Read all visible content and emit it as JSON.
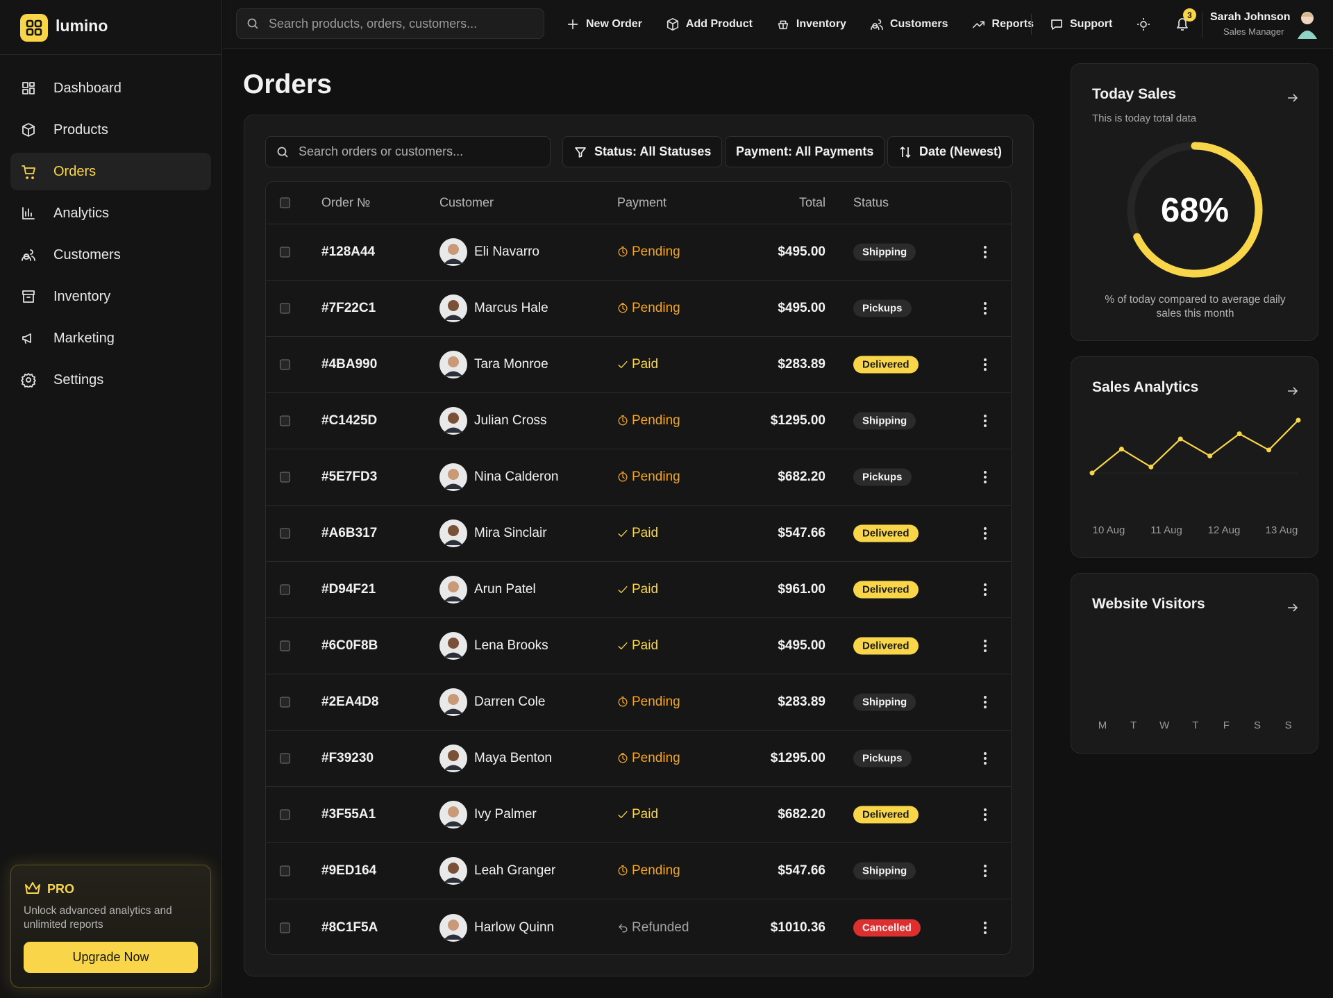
{
  "brand": "lumino",
  "search_placeholder": "Search products, orders, customers...",
  "top_actions": [
    "New Order",
    "Add Product",
    "Inventory",
    "Customers",
    "Reports"
  ],
  "support": "Support",
  "notifications": "3",
  "user": {
    "name": "Sarah Johnson",
    "role": "Sales Manager"
  },
  "nav": [
    "Dashboard",
    "Products",
    "Orders",
    "Analytics",
    "Customers",
    "Inventory",
    "Marketing",
    "Settings"
  ],
  "active_nav": 2,
  "pro": {
    "badge": "PRO",
    "text": "Unlock advanced analytics and unlimited reports",
    "button": "Upgrade Now"
  },
  "page_title": "Orders",
  "filters": {
    "search_placeholder": "Search orders or customers...",
    "status": "Status: All Statuses",
    "payment": "Payment: All Payments",
    "sort": "Date (Newest)"
  },
  "table": {
    "columns": [
      "Order №",
      "Customer",
      "Payment",
      "Total",
      "Status"
    ],
    "rows": [
      {
        "order": "#128A44",
        "customer": "Eli Navarro",
        "payment": "Pending",
        "payment_color": "#f5a524",
        "total": "$495.00",
        "status": "Shipping",
        "status_color": "#2b2b2b"
      },
      {
        "order": "#7F22C1",
        "customer": "Marcus Hale",
        "payment": "Pending",
        "payment_color": "#f5a524",
        "total": "$495.00",
        "status": "Pickups",
        "status_color": "#2b2b2b"
      },
      {
        "order": "#4BA990",
        "customer": "Tara Monroe",
        "payment": "Paid",
        "payment_color": "#f9d649",
        "total": "$283.89",
        "status": "Delivered",
        "status_color": "#f9d649"
      },
      {
        "order": "#C1425D",
        "customer": "Julian Cross",
        "payment": "Pending",
        "payment_color": "#f5a524",
        "total": "$1295.00",
        "status": "Shipping",
        "status_color": "#2b2b2b"
      },
      {
        "order": "#5E7FD3",
        "customer": "Nina Calderon",
        "payment": "Pending",
        "payment_color": "#f5a524",
        "total": "$682.20",
        "status": "Pickups",
        "status_color": "#2b2b2b"
      },
      {
        "order": "#A6B317",
        "customer": "Mira Sinclair",
        "payment": "Paid",
        "payment_color": "#f9d649",
        "total": "$547.66",
        "status": "Delivered",
        "status_color": "#f9d649"
      },
      {
        "order": "#D94F21",
        "customer": "Arun Patel",
        "payment": "Paid",
        "payment_color": "#f9d649",
        "total": "$961.00",
        "status": "Delivered",
        "status_color": "#f9d649"
      },
      {
        "order": "#6C0F8B",
        "customer": "Lena Brooks",
        "payment": "Paid",
        "payment_color": "#f9d649",
        "total": "$495.00",
        "status": "Delivered",
        "status_color": "#f9d649"
      },
      {
        "order": "#2EA4D8",
        "customer": "Darren Cole",
        "payment": "Pending",
        "payment_color": "#f5a524",
        "total": "$283.89",
        "status": "Shipping",
        "status_color": "#2b2b2b"
      },
      {
        "order": "#F39230",
        "customer": "Maya Benton",
        "payment": "Pending",
        "payment_color": "#f5a524",
        "total": "$1295.00",
        "status": "Pickups",
        "status_color": "#2b2b2b"
      },
      {
        "order": "#3F55A1",
        "customer": "Ivy Palmer",
        "payment": "Paid",
        "payment_color": "#f9d649",
        "total": "$682.20",
        "status": "Delivered",
        "status_color": "#f9d649"
      },
      {
        "order": "#9ED164",
        "customer": "Leah Granger",
        "payment": "Pending",
        "payment_color": "#f5a524",
        "total": "$547.66",
        "status": "Shipping",
        "status_color": "#2b2b2b"
      },
      {
        "order": "#8C1F5A",
        "customer": "Harlow Quinn",
        "payment": "Refunded",
        "payment_color": "#a3a3a3",
        "total": "$1010.36",
        "status": "Cancelled",
        "status_color": "#dc2f2f"
      }
    ]
  },
  "today_sales": {
    "title": "Today Sales",
    "subtitle": "This is today total data",
    "value": 68,
    "value_label": "68%",
    "color": "#f9d649",
    "caption": "% of today compared to average daily sales this month"
  },
  "sales_analytics": {
    "title": "Sales Analytics",
    "type": "line",
    "color": "#f9d649",
    "values": [
      20,
      48,
      27,
      60,
      40,
      66,
      47,
      82
    ],
    "x_labels": [
      "10 Aug",
      "11 Aug",
      "12 Aug",
      "13 Aug"
    ]
  },
  "website_visitors": {
    "title": "Website Visitors",
    "days": [
      "M",
      "T",
      "W",
      "T",
      "F",
      "S",
      "S"
    ]
  }
}
